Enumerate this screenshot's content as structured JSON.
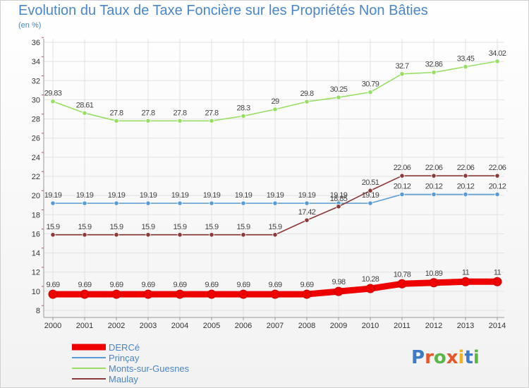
{
  "title": "Evolution du Taux de Taxe Foncière sur les Propriétés Non Bâties",
  "subtitle": "(en %)",
  "logo": {
    "text": "Proxiti",
    "colors": [
      "#3d7ac7",
      "#e8562a",
      "#5bb548",
      "#e8562a",
      "#f0b323",
      "#3d7ac7",
      "#5bb548"
    ]
  },
  "chart_data": {
    "type": "line",
    "title": "Evolution du Taux de Taxe Foncière sur les Propriétés Non Bâties",
    "ylabel": "(en %)",
    "x": [
      "2000",
      "2001",
      "2002",
      "2003",
      "2004",
      "2005",
      "2006",
      "2007",
      "2008",
      "2009",
      "2010",
      "2011",
      "2012",
      "2013",
      "2014"
    ],
    "ylim": [
      8,
      36
    ],
    "yticks": [
      "8",
      "10",
      "12",
      "14",
      "16",
      "18",
      "20",
      "22",
      "24",
      "26",
      "28",
      "30",
      "32",
      "34",
      "36"
    ],
    "grid": true,
    "legend_position": "bottom-left",
    "series": [
      {
        "name": "DERCé",
        "color": "#ee0000",
        "values": [
          9.69,
          9.69,
          9.69,
          9.69,
          9.69,
          9.69,
          9.69,
          9.69,
          9.69,
          9.98,
          10.28,
          10.78,
          10.89,
          11,
          11
        ],
        "labels": [
          "9.69",
          "9.69",
          "9.69",
          "9.69",
          "9.69",
          "9.69",
          "9.69",
          "9.69",
          "9.69",
          "9.98",
          "10.28",
          "10.78",
          "10.89",
          "11",
          "11"
        ]
      },
      {
        "name": "Prinçay",
        "color": "#5b9bd5",
        "values": [
          19.19,
          19.19,
          19.19,
          19.19,
          19.19,
          19.19,
          19.19,
          19.19,
          19.19,
          19.19,
          19.19,
          20.12,
          20.12,
          20.12,
          20.12
        ],
        "labels": [
          "19.19",
          "19.19",
          "19.19",
          "19.19",
          "19.19",
          "19.19",
          "19.19",
          "19.19",
          "19.19",
          "19.19",
          "19.19",
          "20.12",
          "20.12",
          "20.12",
          "20.12"
        ]
      },
      {
        "name": "Monts-sur-Guesnes",
        "color": "#99dd66",
        "values": [
          29.83,
          28.61,
          27.8,
          27.8,
          27.8,
          27.8,
          28.3,
          29,
          29.8,
          30.25,
          30.79,
          32.7,
          32.86,
          33.45,
          34.02
        ],
        "labels": [
          "29.83",
          "28.61",
          "27.8",
          "27.8",
          "27.8",
          "27.8",
          "28.3",
          "29",
          "29.8",
          "30.25",
          "30.79",
          "32.7",
          "32.86",
          "33.45",
          "34.02"
        ]
      },
      {
        "name": "Maulay",
        "color": "#8b3a3a",
        "values": [
          15.9,
          15.9,
          15.9,
          15.9,
          15.9,
          15.9,
          15.9,
          15.9,
          17.42,
          18.85,
          20.51,
          22.06,
          22.06,
          22.06,
          22.06
        ],
        "labels": [
          "15.9",
          "15.9",
          "15.9",
          "15.9",
          "15.9",
          "15.9",
          "15.9",
          "15.9",
          "17.42",
          "18.85",
          "20.51",
          "22.06",
          "22.06",
          "22.06",
          "22.06"
        ]
      }
    ]
  }
}
